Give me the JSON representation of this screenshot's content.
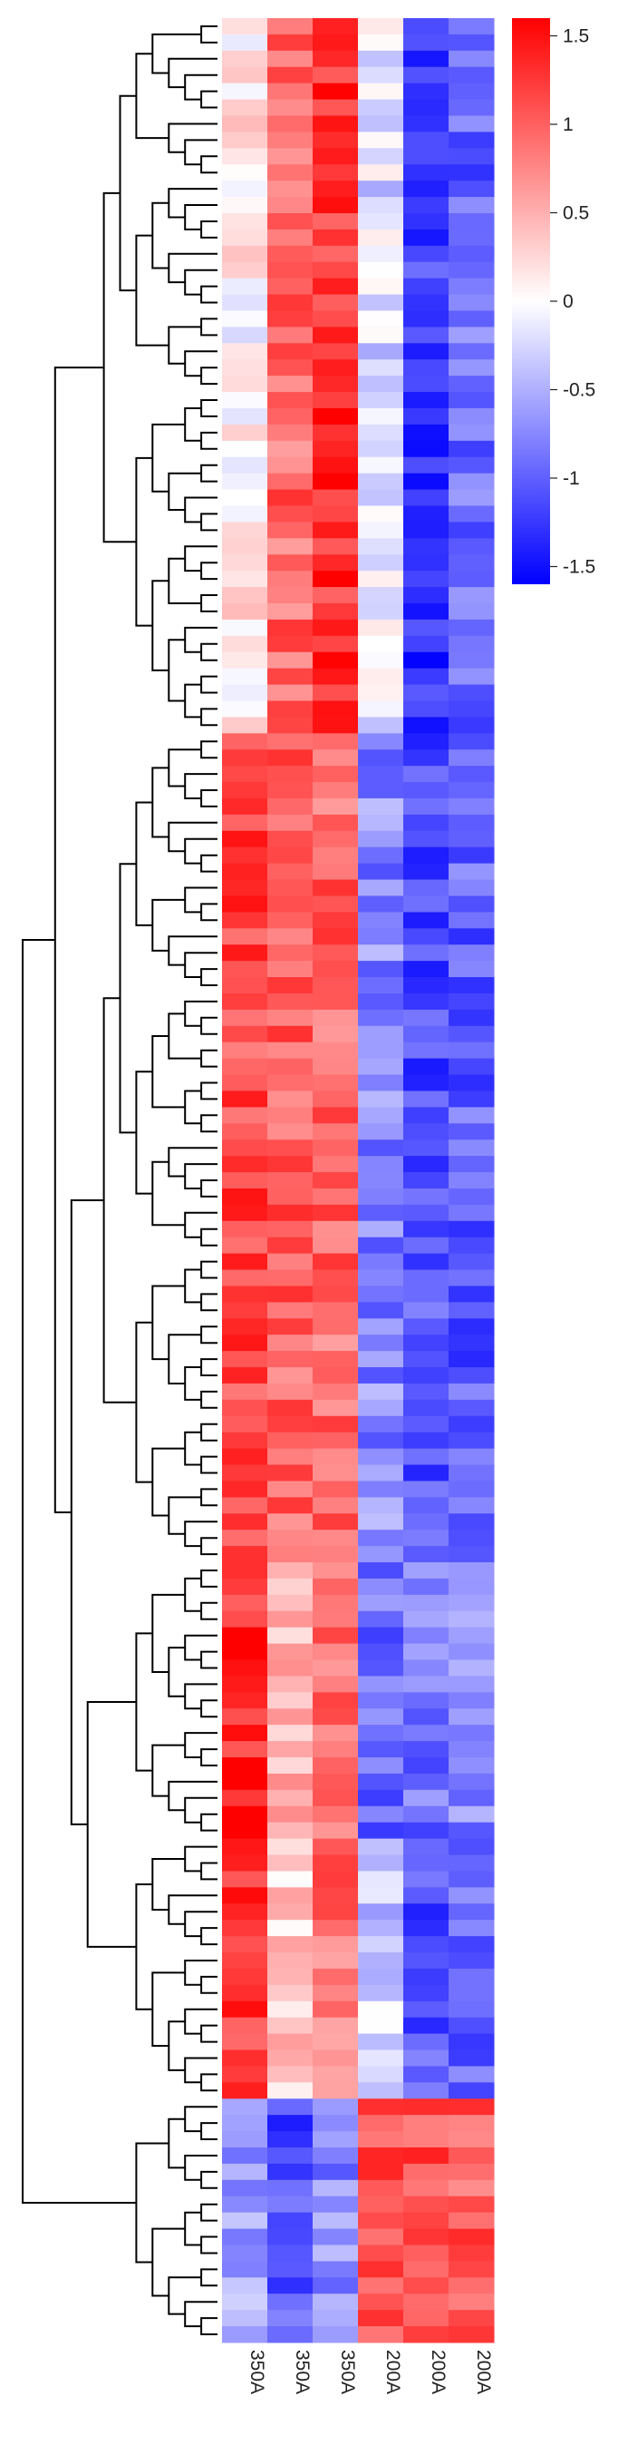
{
  "chart_data": {
    "type": "heatmap",
    "title": "",
    "xlabel": "",
    "ylabel": "",
    "columns": [
      "350A",
      "350A",
      "350A",
      "200A",
      "200A",
      "200A"
    ],
    "row_count": 143,
    "row_clusters": [
      {
        "rows": [
          0,
          44
        ],
        "profile": [
          0.1,
          0.95,
          1.3,
          -0.2,
          -1.25,
          -0.95
        ]
      },
      {
        "rows": [
          44,
          95
        ],
        "profile": [
          1.15,
          1.0,
          0.95,
          -0.75,
          -1.1,
          -1.0
        ]
      },
      {
        "rows": [
          95,
          112
        ],
        "profile": [
          1.35,
          0.55,
          0.85,
          -0.95,
          -0.9,
          -0.8
        ]
      },
      {
        "rows": [
          112,
          128
        ],
        "profile": [
          1.25,
          0.35,
          0.9,
          -0.3,
          -1.05,
          -0.95
        ]
      },
      {
        "rows": [
          128,
          143
        ],
        "profile": [
          -0.6,
          -1.1,
          -0.75,
          1.2,
          1.15,
          1.05
        ]
      }
    ],
    "color_scale": {
      "min": -1.6,
      "max": 1.6,
      "low_color": "#0000ff",
      "mid_color": "#ffffff",
      "high_color": "#ff0000",
      "ticks": [
        1.5,
        1,
        0.5,
        0,
        -0.5,
        -1,
        -1.5
      ],
      "tick_labels": [
        "1.5",
        "1",
        "0.5",
        "0",
        "-0.5",
        "-1",
        "-1.5"
      ]
    },
    "row_dendrogram": true,
    "legend_position": "top-right"
  }
}
